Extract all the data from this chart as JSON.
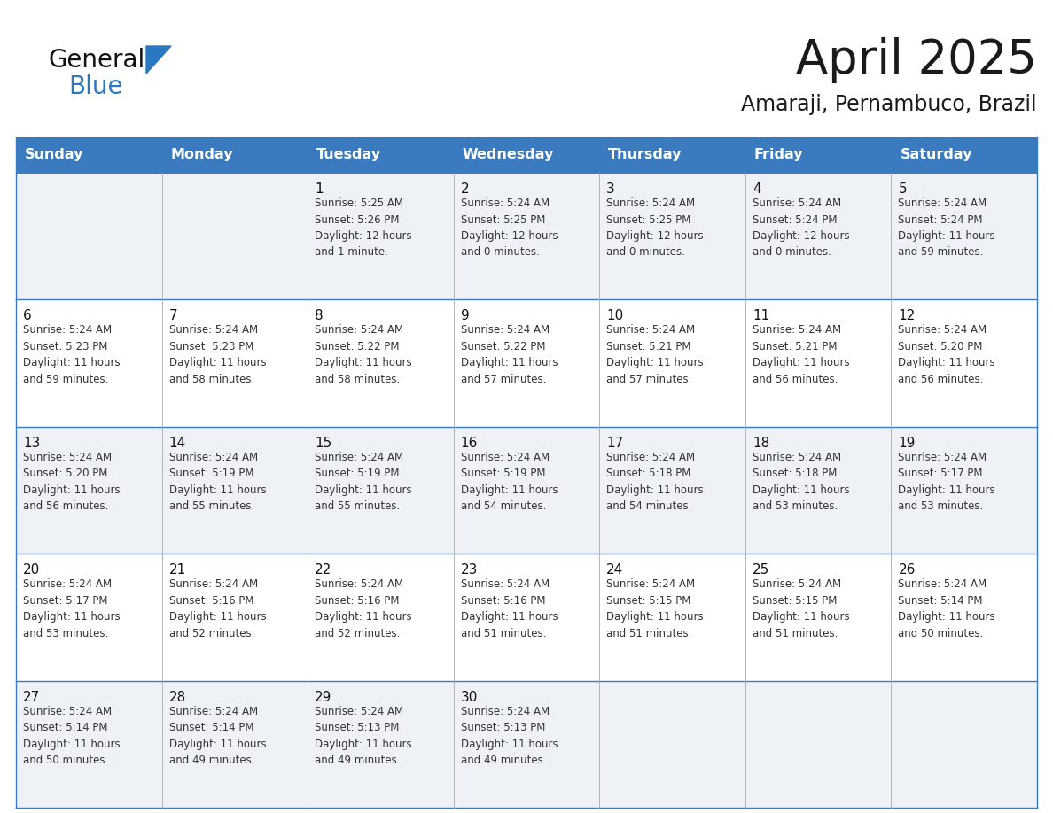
{
  "title": "April 2025",
  "subtitle": "Amaraji, Pernambuco, Brazil",
  "header_bg": "#3a7bbf",
  "header_text_color": "#ffffff",
  "row0_bg": "#eef2f7",
  "row1_bg": "#ffffff",
  "border_color": "#3a7bbf",
  "day_names": [
    "Sunday",
    "Monday",
    "Tuesday",
    "Wednesday",
    "Thursday",
    "Friday",
    "Saturday"
  ],
  "title_color": "#1a1a1a",
  "subtitle_color": "#1a1a1a",
  "cell_text_color": "#333333",
  "day_number_color": "#111111",
  "logo_general_color": "#111111",
  "logo_blue_color": "#2a78c0",
  "logo_triangle_color": "#2a78c0",
  "calendar": [
    [
      {
        "day": "",
        "info": ""
      },
      {
        "day": "",
        "info": ""
      },
      {
        "day": "1",
        "info": "Sunrise: 5:25 AM\nSunset: 5:26 PM\nDaylight: 12 hours\nand 1 minute."
      },
      {
        "day": "2",
        "info": "Sunrise: 5:24 AM\nSunset: 5:25 PM\nDaylight: 12 hours\nand 0 minutes."
      },
      {
        "day": "3",
        "info": "Sunrise: 5:24 AM\nSunset: 5:25 PM\nDaylight: 12 hours\nand 0 minutes."
      },
      {
        "day": "4",
        "info": "Sunrise: 5:24 AM\nSunset: 5:24 PM\nDaylight: 12 hours\nand 0 minutes."
      },
      {
        "day": "5",
        "info": "Sunrise: 5:24 AM\nSunset: 5:24 PM\nDaylight: 11 hours\nand 59 minutes."
      }
    ],
    [
      {
        "day": "6",
        "info": "Sunrise: 5:24 AM\nSunset: 5:23 PM\nDaylight: 11 hours\nand 59 minutes."
      },
      {
        "day": "7",
        "info": "Sunrise: 5:24 AM\nSunset: 5:23 PM\nDaylight: 11 hours\nand 58 minutes."
      },
      {
        "day": "8",
        "info": "Sunrise: 5:24 AM\nSunset: 5:22 PM\nDaylight: 11 hours\nand 58 minutes."
      },
      {
        "day": "9",
        "info": "Sunrise: 5:24 AM\nSunset: 5:22 PM\nDaylight: 11 hours\nand 57 minutes."
      },
      {
        "day": "10",
        "info": "Sunrise: 5:24 AM\nSunset: 5:21 PM\nDaylight: 11 hours\nand 57 minutes."
      },
      {
        "day": "11",
        "info": "Sunrise: 5:24 AM\nSunset: 5:21 PM\nDaylight: 11 hours\nand 56 minutes."
      },
      {
        "day": "12",
        "info": "Sunrise: 5:24 AM\nSunset: 5:20 PM\nDaylight: 11 hours\nand 56 minutes."
      }
    ],
    [
      {
        "day": "13",
        "info": "Sunrise: 5:24 AM\nSunset: 5:20 PM\nDaylight: 11 hours\nand 56 minutes."
      },
      {
        "day": "14",
        "info": "Sunrise: 5:24 AM\nSunset: 5:19 PM\nDaylight: 11 hours\nand 55 minutes."
      },
      {
        "day": "15",
        "info": "Sunrise: 5:24 AM\nSunset: 5:19 PM\nDaylight: 11 hours\nand 55 minutes."
      },
      {
        "day": "16",
        "info": "Sunrise: 5:24 AM\nSunset: 5:19 PM\nDaylight: 11 hours\nand 54 minutes."
      },
      {
        "day": "17",
        "info": "Sunrise: 5:24 AM\nSunset: 5:18 PM\nDaylight: 11 hours\nand 54 minutes."
      },
      {
        "day": "18",
        "info": "Sunrise: 5:24 AM\nSunset: 5:18 PM\nDaylight: 11 hours\nand 53 minutes."
      },
      {
        "day": "19",
        "info": "Sunrise: 5:24 AM\nSunset: 5:17 PM\nDaylight: 11 hours\nand 53 minutes."
      }
    ],
    [
      {
        "day": "20",
        "info": "Sunrise: 5:24 AM\nSunset: 5:17 PM\nDaylight: 11 hours\nand 53 minutes."
      },
      {
        "day": "21",
        "info": "Sunrise: 5:24 AM\nSunset: 5:16 PM\nDaylight: 11 hours\nand 52 minutes."
      },
      {
        "day": "22",
        "info": "Sunrise: 5:24 AM\nSunset: 5:16 PM\nDaylight: 11 hours\nand 52 minutes."
      },
      {
        "day": "23",
        "info": "Sunrise: 5:24 AM\nSunset: 5:16 PM\nDaylight: 11 hours\nand 51 minutes."
      },
      {
        "day": "24",
        "info": "Sunrise: 5:24 AM\nSunset: 5:15 PM\nDaylight: 11 hours\nand 51 minutes."
      },
      {
        "day": "25",
        "info": "Sunrise: 5:24 AM\nSunset: 5:15 PM\nDaylight: 11 hours\nand 51 minutes."
      },
      {
        "day": "26",
        "info": "Sunrise: 5:24 AM\nSunset: 5:14 PM\nDaylight: 11 hours\nand 50 minutes."
      }
    ],
    [
      {
        "day": "27",
        "info": "Sunrise: 5:24 AM\nSunset: 5:14 PM\nDaylight: 11 hours\nand 50 minutes."
      },
      {
        "day": "28",
        "info": "Sunrise: 5:24 AM\nSunset: 5:14 PM\nDaylight: 11 hours\nand 49 minutes."
      },
      {
        "day": "29",
        "info": "Sunrise: 5:24 AM\nSunset: 5:13 PM\nDaylight: 11 hours\nand 49 minutes."
      },
      {
        "day": "30",
        "info": "Sunrise: 5:24 AM\nSunset: 5:13 PM\nDaylight: 11 hours\nand 49 minutes."
      },
      {
        "day": "",
        "info": ""
      },
      {
        "day": "",
        "info": ""
      },
      {
        "day": "",
        "info": ""
      }
    ]
  ]
}
